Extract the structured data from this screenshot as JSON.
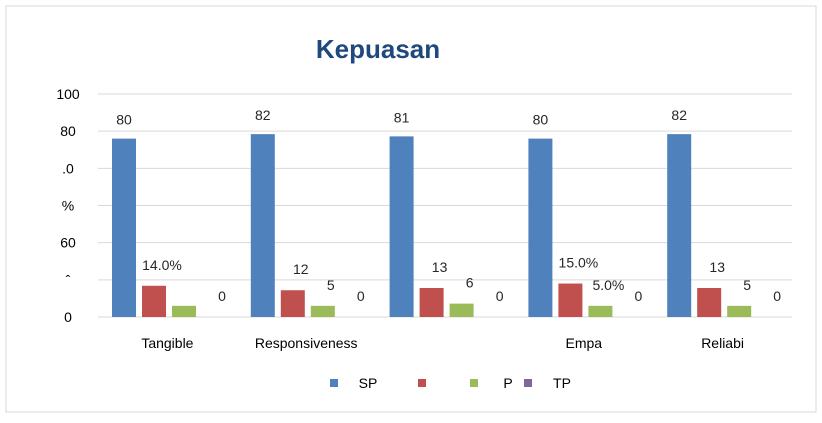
{
  "chart_data": {
    "type": "bar",
    "title": "Kepuasan",
    "categories": [
      "Tangible",
      "Responsiveness",
      "",
      "Empa",
      "Reliabi"
    ],
    "y_tick_labels": [
      "100",
      "80",
      ".0",
      "%",
      "60",
      "ˆ",
      "0"
    ],
    "ylim": [
      0,
      100
    ],
    "grid": true,
    "legend_position": "bottom",
    "series": [
      {
        "name": "SP",
        "color": "#4f81bd",
        "values": [
          80,
          82,
          81,
          80,
          82
        ],
        "labels": [
          "80",
          "82",
          "81",
          "80",
          "82"
        ]
      },
      {
        "name": "",
        "color": "#c0504d",
        "values": [
          14,
          12,
          13,
          15,
          13
        ],
        "labels": [
          "14.0%",
          "12",
          "13",
          "15.0%",
          "13"
        ]
      },
      {
        "name": "P",
        "color": "#9bbb59",
        "values": [
          5,
          5,
          6,
          5,
          5
        ],
        "labels": [
          "",
          "5",
          "6",
          "5.0%",
          "5"
        ]
      },
      {
        "name": "TP",
        "color": "#8064a2",
        "values": [
          0,
          0,
          0,
          0,
          0
        ],
        "labels": [
          "0",
          "0",
          "0",
          "0",
          "0"
        ]
      }
    ]
  }
}
